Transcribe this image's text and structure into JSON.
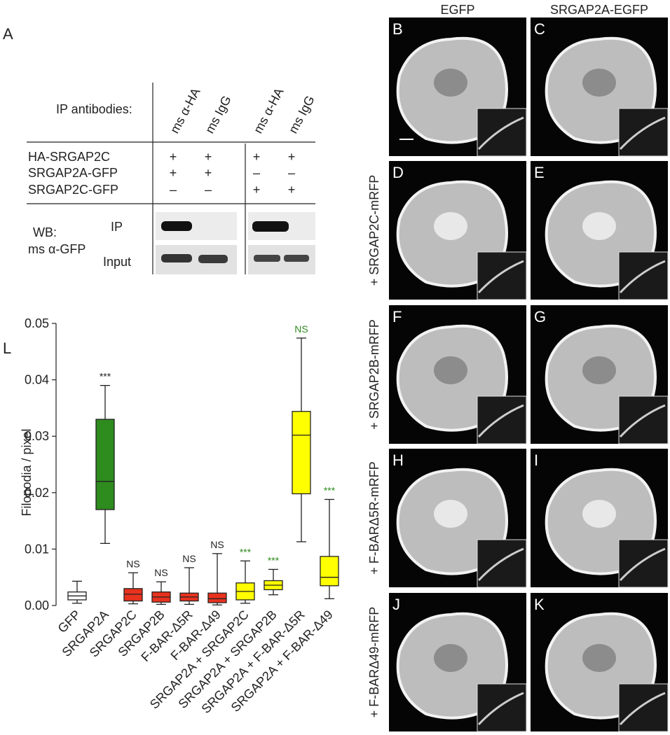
{
  "panel_a": {
    "label": "A",
    "ip_antibodies_label": "IP antibodies:",
    "antibodies": [
      "ms α-HA",
      "ms IgG",
      "ms α-HA",
      "ms IgG"
    ],
    "rows": [
      {
        "name": "HA-SRGAP2C",
        "marks": [
          "+",
          "+",
          "+",
          "+"
        ]
      },
      {
        "name": "SRGAP2A-GFP",
        "marks": [
          "+",
          "+",
          "–",
          "–"
        ]
      },
      {
        "name": "SRGAP2C-GFP",
        "marks": [
          "–",
          "–",
          "+",
          "+"
        ]
      }
    ],
    "wb_label": "WB:",
    "wb_antibody": "ms α-GFP",
    "blot_rows": [
      "IP",
      "Input"
    ]
  },
  "imaging": {
    "columns": [
      "EGFP",
      "SRGAP2A-EGFP"
    ],
    "rows": [
      {
        "panels": [
          "B",
          "C"
        ]
      },
      {
        "label": "+ SRGAP2C-mRFP",
        "panels": [
          "D",
          "E"
        ]
      },
      {
        "label": "+ SRGAP2B-mRFP",
        "panels": [
          "F",
          "G"
        ]
      },
      {
        "label": "+ F-BARΔ5R-mRFP",
        "panels": [
          "H",
          "I"
        ]
      },
      {
        "label": "+ F-BARΔ49-mRFP",
        "panels": [
          "J",
          "K"
        ]
      }
    ]
  },
  "chart_data": {
    "type": "box",
    "label": "L",
    "ylabel": "Filopodia / pixel",
    "ylim": [
      0,
      0.05
    ],
    "yticks": [
      {
        "value": 0,
        "label": "0.00"
      },
      0.01,
      0.02,
      0.03,
      0.04,
      0.05
    ],
    "boxes": [
      {
        "name": "GFP",
        "color": "#ffffff",
        "whislo": 0.0004,
        "q1": 0.001,
        "med": 0.0017,
        "q3": 0.0024,
        "whishi": 0.0043
      },
      {
        "name": "SRGAP2A",
        "color": "#2e8b1e",
        "whislo": 0.011,
        "q1": 0.017,
        "med": 0.022,
        "q3": 0.033,
        "whishi": 0.039,
        "annotation": "***",
        "annotation_color": "#222222"
      },
      {
        "name": "SRGAP2C",
        "color": "#e8321e",
        "whislo": 0.0003,
        "q1": 0.0008,
        "med": 0.002,
        "q3": 0.003,
        "whishi": 0.0058,
        "annotation": "NS",
        "annotation_color": "#222222"
      },
      {
        "name": "SRGAP2B",
        "color": "#e8321e",
        "whislo": 0.0002,
        "q1": 0.0006,
        "med": 0.0015,
        "q3": 0.0024,
        "whishi": 0.0042,
        "annotation": "NS",
        "annotation_color": "#222222"
      },
      {
        "name": "F-BAR-Δ5R",
        "color": "#e8321e",
        "whislo": 0.0002,
        "q1": 0.0008,
        "med": 0.0015,
        "q3": 0.0022,
        "whishi": 0.0067,
        "annotation": "NS",
        "annotation_color": "#222222"
      },
      {
        "name": "F-BAR-Δ49",
        "color": "#e8321e",
        "whislo": 0.0001,
        "q1": 0.0005,
        "med": 0.0012,
        "q3": 0.0022,
        "whishi": 0.0092,
        "annotation": "NS",
        "annotation_color": "#222222"
      },
      {
        "name": "SRGAP2A + SRGAP2C",
        "color": "#ffff00",
        "whislo": 0.0004,
        "q1": 0.001,
        "med": 0.0025,
        "q3": 0.004,
        "whishi": 0.0079,
        "annotation": "***",
        "annotation_color": "#2e8b1e"
      },
      {
        "name": "SRGAP2A + SRGAP2B",
        "color": "#ffff00",
        "whislo": 0.0019,
        "q1": 0.0028,
        "med": 0.0036,
        "q3": 0.0044,
        "whishi": 0.0064,
        "annotation": "***",
        "annotation_color": "#2e8b1e"
      },
      {
        "name": "SRGAP2A + F-BAR-Δ5R",
        "color": "#ffff00",
        "whislo": 0.0113,
        "q1": 0.0198,
        "med": 0.0302,
        "q3": 0.0344,
        "whishi": 0.0474,
        "annotation": "NS",
        "annotation_color": "#2e8b1e"
      },
      {
        "name": "SRGAP2A + F-BAR-Δ49",
        "color": "#ffff00",
        "whislo": 0.0012,
        "q1": 0.0035,
        "med": 0.005,
        "q3": 0.0087,
        "whishi": 0.0188,
        "annotation": "***",
        "annotation_color": "#2e8b1e"
      }
    ]
  }
}
